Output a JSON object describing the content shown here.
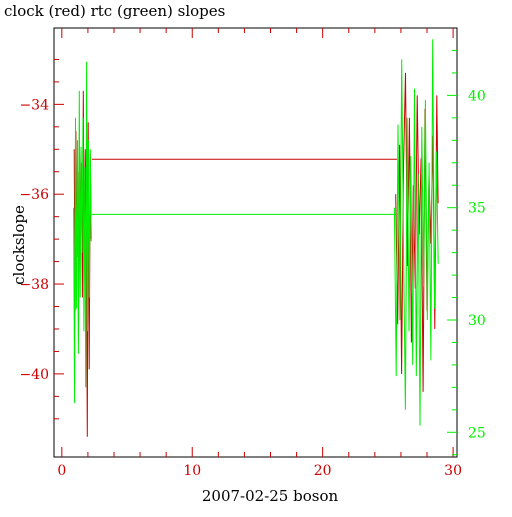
{
  "chart_data": {
    "type": "line",
    "title": "clock (red) rtc (green) slopes",
    "xlabel": "2007-02-25 boson",
    "ylabel": "clockslope",
    "xlim": [
      -0.6,
      30.3
    ],
    "ylim": [
      -41.85,
      -32.3
    ],
    "y2lim": [
      23.9,
      43.0
    ],
    "x_ticks": [
      0,
      10,
      20,
      30
    ],
    "y_ticks": [
      -34,
      -36,
      -38,
      -40
    ],
    "y2_ticks": [
      25,
      30,
      35,
      40
    ],
    "axis_color": "#000000",
    "colors": {
      "x_tick": "#cc0000",
      "y_tick": "#cc0000",
      "y2_tick": "#00ee00"
    },
    "series": [
      {
        "axis": "left",
        "color": "#cc0000",
        "segments": [
          {
            "x": [
              0.95,
              1.02,
              1.08,
              1.15,
              1.22,
              1.28,
              1.35,
              1.42,
              1.5,
              1.58,
              1.65,
              1.72,
              1.8,
              1.88,
              1.95,
              2.02,
              2.1,
              2.18,
              2.25
            ],
            "y": [
              -35.0,
              -38.6,
              -34.6,
              -37.4,
              -35.5,
              -39.2,
              -34.8,
              -36.6,
              -35.3,
              -38.3,
              -33.7,
              -37.8,
              -35.0,
              -36.7,
              -41.4,
              -34.4,
              -39.9,
              -35.1,
              -37.0
            ]
          },
          {
            "x": [
              2.3,
              25.7
            ],
            "y": [
              -35.22,
              -35.22
            ]
          },
          {
            "x": [
              25.6,
              25.75,
              25.9,
              26.05,
              26.2,
              26.35,
              26.5,
              26.65,
              26.8,
              26.95,
              27.1,
              27.25,
              27.4,
              27.55,
              27.7,
              27.85,
              28.0,
              28.15,
              28.3,
              28.45,
              28.6,
              28.75,
              28.85
            ],
            "y": [
              -36.0,
              -38.9,
              -34.9,
              -40.0,
              -35.4,
              -33.3,
              -37.6,
              -34.3,
              -39.3,
              -35.8,
              -38.1,
              -33.8,
              -36.9,
              -35.2,
              -40.4,
              -34.1,
              -38.6,
              -35.6,
              -37.1,
              -34.7,
              -39.0,
              -33.8,
              -36.2
            ]
          }
        ]
      },
      {
        "axis": "right",
        "color": "#00ee00",
        "segments": [
          {
            "x": [
              0.9,
              0.98,
              1.05,
              1.12,
              1.2,
              1.27,
              1.34,
              1.41,
              1.48,
              1.55,
              1.62,
              1.69,
              1.76,
              1.83,
              1.9,
              1.97,
              2.04,
              2.11,
              2.18,
              2.25
            ],
            "y": [
              35.0,
              26.3,
              39.0,
              30.5,
              38.0,
              28.5,
              40.2,
              31.0,
              37.7,
              33.0,
              39.0,
              29.5,
              36.8,
              27.0,
              41.5,
              29.5,
              38.0,
              31.0,
              37.6,
              33.5
            ]
          },
          {
            "x": [
              2.3,
              15.0,
              25.6
            ],
            "y": [
              34.7,
              34.7,
              34.7
            ]
          },
          {
            "x": [
              25.5,
              25.64,
              25.78,
              25.92,
              26.06,
              26.2,
              26.34,
              26.48,
              26.62,
              26.76,
              26.9,
              27.04,
              27.18,
              27.32,
              27.46,
              27.6,
              27.74,
              27.88,
              28.02,
              28.16,
              28.3,
              28.44,
              28.58,
              28.72,
              28.86
            ],
            "y": [
              35.0,
              27.5,
              38.7,
              30.0,
              41.6,
              33.3,
              26.0,
              39.0,
              29.5,
              37.3,
              28.0,
              40.3,
              27.5,
              36.5,
              25.3,
              38.6,
              31.5,
              39.8,
              30.0,
              37.0,
              28.2,
              42.5,
              30.5,
              37.5,
              32.5
            ]
          }
        ]
      }
    ]
  }
}
